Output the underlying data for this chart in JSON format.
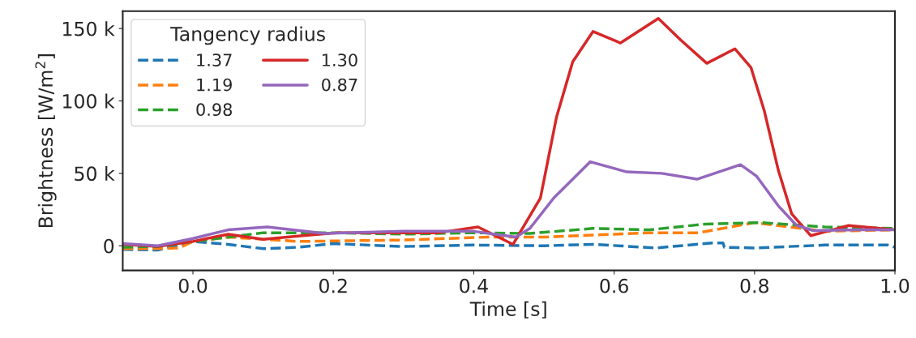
{
  "chart_data": {
    "type": "line",
    "xlabel": "Time [s]",
    "ylabel": "Brightness [W/m$^{2}$]",
    "legend_title": "Tangency radius",
    "legend": "top left",
    "xlim": [
      -0.1,
      1.0
    ],
    "xticks": [
      {
        "value": 0.0,
        "label": "0.0"
      },
      0.2,
      0.4,
      0.6,
      0.8,
      {
        "value": 1.0,
        "label": "1.0"
      }
    ],
    "ylim": [
      -17000,
      162000
    ],
    "yticks": [
      0,
      {
        "value": 50000,
        "label": "50 k"
      },
      {
        "value": 100000,
        "label": "100 k"
      },
      {
        "value": 150000,
        "label": "150 k"
      }
    ],
    "grid": false,
    "series": [
      {
        "name": "1.37",
        "color": "#1f77b4",
        "line_style": "dashed",
        "x": [
          -0.1,
          -0.05,
          0.0,
          0.05,
          0.1,
          0.15,
          0.2,
          0.3,
          0.4,
          0.5,
          0.57,
          0.66,
          0.74,
          0.755,
          0.757,
          0.8,
          0.85,
          0.9,
          0.99,
          1.0
        ],
        "values": [
          -2500,
          -3000,
          3000,
          1000,
          -2000,
          -1000,
          1500,
          -500,
          500,
          0,
          1000,
          -1500,
          2000,
          2000,
          -1000,
          -1500,
          -500,
          500,
          500,
          -1000
        ]
      },
      {
        "name": "1.19",
        "color": "#ff7f0e",
        "line_style": "dashed",
        "x": [
          -0.1,
          -0.05,
          -0.02,
          0.0,
          0.05,
          0.15,
          0.3,
          0.42,
          0.5,
          0.6,
          0.65,
          0.72,
          0.8,
          0.9,
          1.0
        ],
        "values": [
          -2000,
          -2000,
          -1500,
          3000,
          6000,
          3000,
          4000,
          6000,
          6000,
          8000,
          9000,
          9000,
          16000,
          10000,
          11000
        ]
      },
      {
        "name": "0.98",
        "color": "#2ca02c",
        "line_style": "dashed",
        "x": [
          -0.1,
          -0.05,
          0.0,
          0.1,
          0.2,
          0.3,
          0.4,
          0.48,
          0.57,
          0.65,
          0.73,
          0.81,
          0.9,
          1.0
        ],
        "values": [
          -1000,
          -500,
          3000,
          9000,
          9000,
          8000,
          9000,
          8500,
          12000,
          11000,
          15000,
          16000,
          13000,
          12000
        ]
      },
      {
        "name": "1.30",
        "color": "#d62728",
        "line_style": "solid",
        "x": [
          -0.1,
          -0.05,
          0.0,
          0.05,
          0.1,
          0.156,
          0.207,
          0.35,
          0.406,
          0.456,
          0.495,
          0.518,
          0.541,
          0.57,
          0.609,
          0.663,
          0.695,
          0.732,
          0.772,
          0.795,
          0.814,
          0.834,
          0.853,
          0.88,
          0.934,
          1.0
        ],
        "values": [
          1000,
          -500,
          3000,
          8000,
          4500,
          7000,
          9000,
          9000,
          13000,
          1000,
          33000,
          89000,
          127000,
          148000,
          140000,
          157000,
          142000,
          126000,
          136000,
          123000,
          93000,
          52000,
          22000,
          7000,
          14000,
          11000
        ]
      },
      {
        "name": "0.87",
        "color": "#9467bd",
        "line_style": "solid",
        "x": [
          -0.1,
          -0.05,
          0.0,
          0.05,
          0.106,
          0.187,
          0.3,
          0.4,
          0.46,
          0.48,
          0.514,
          0.566,
          0.618,
          0.668,
          0.718,
          0.78,
          0.803,
          0.834,
          0.86,
          0.884,
          0.95,
          1.0
        ],
        "values": [
          1500,
          0,
          5000,
          11000,
          13000,
          8500,
          10000,
          10000,
          6000,
          12000,
          33000,
          58000,
          51000,
          50000,
          46000,
          56000,
          48000,
          27500,
          14000,
          10500,
          11000,
          11000
        ]
      }
    ]
  }
}
